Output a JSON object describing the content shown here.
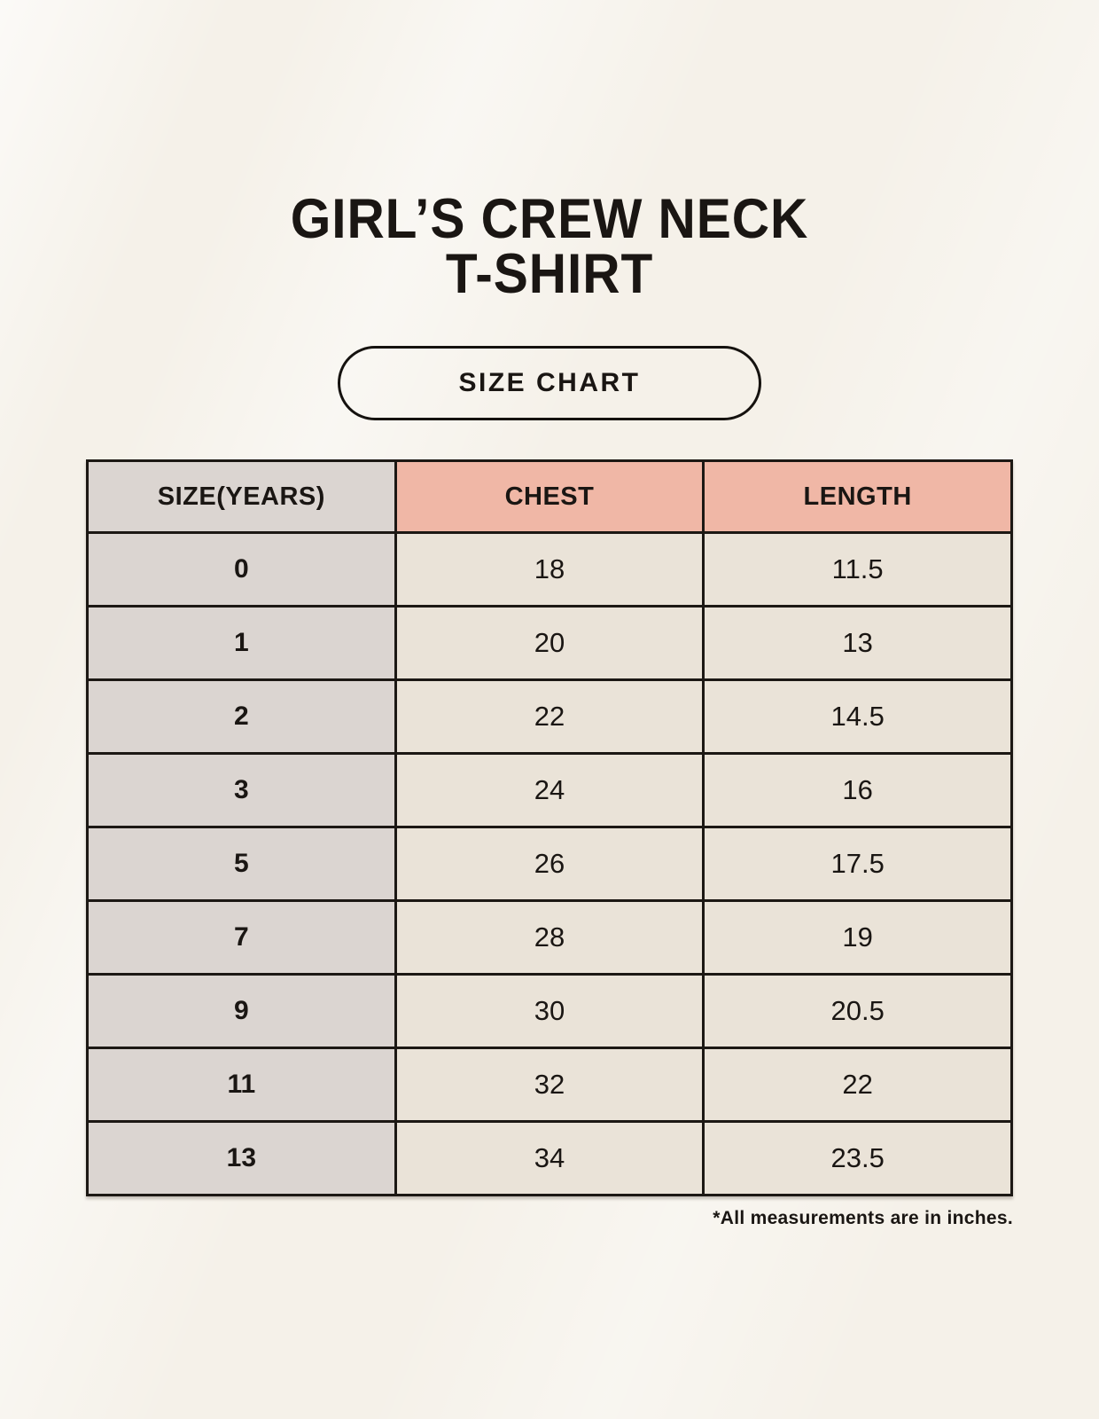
{
  "page": {
    "title_line1": "GIRL’S CREW NECK",
    "title_line2": "T-SHIRT",
    "size_chart_label": "SIZE CHART",
    "footnote": "*All measurements are in inches."
  },
  "colors": {
    "background": "#f5f1e9",
    "header_pink": "#f0b7a6",
    "header_gray": "#dbd5d1",
    "cell_cream": "#eae3d8",
    "border": "#1c1814",
    "text": "#1a1613"
  },
  "chart_data": {
    "type": "table",
    "title": "GIRL’S CREW NECK T-SHIRT",
    "subtitle": "SIZE CHART",
    "columns": [
      "SIZE(YEARS)",
      "CHEST",
      "LENGTH"
    ],
    "rows": [
      [
        "0",
        "18",
        "11.5"
      ],
      [
        "1",
        "20",
        "13"
      ],
      [
        "2",
        "22",
        "14.5"
      ],
      [
        "3",
        "24",
        "16"
      ],
      [
        "5",
        "26",
        "17.5"
      ],
      [
        "7",
        "28",
        "19"
      ],
      [
        "9",
        "30",
        "20.5"
      ],
      [
        "11",
        "32",
        "22"
      ],
      [
        "13",
        "34",
        "23.5"
      ]
    ],
    "units": "inches",
    "note": "*All measurements are in inches."
  }
}
